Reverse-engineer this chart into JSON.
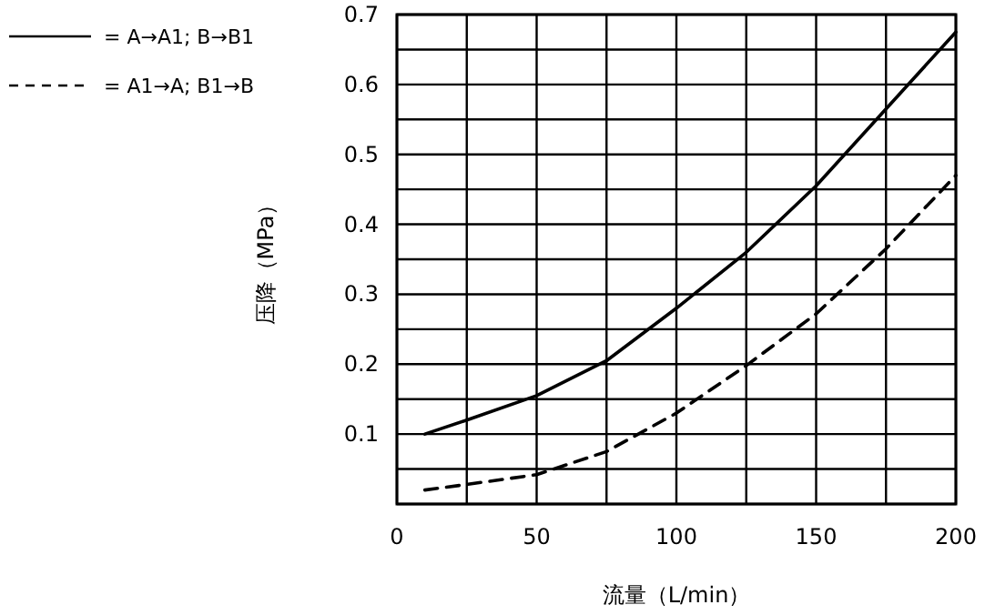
{
  "chart_data": {
    "type": "line",
    "xlabel": "流量（L/min）",
    "ylabel": "压降（MPa）",
    "xlim": [
      0,
      200
    ],
    "ylim": [
      0,
      0.7
    ],
    "xticks": [
      0,
      {
        "value": 25,
        "label": null
      },
      50,
      {
        "value": 75,
        "label": null
      },
      100,
      {
        "value": 125,
        "label": null
      },
      150,
      {
        "value": 175,
        "label": null
      },
      200
    ],
    "yticks": [
      {
        "value": 0,
        "label": null
      },
      {
        "value": 0.05,
        "label": null
      },
      0.1,
      {
        "value": 0.15,
        "label": null
      },
      0.2,
      {
        "value": 0.25,
        "label": null
      },
      0.3,
      {
        "value": 0.35,
        "label": null
      },
      0.4,
      {
        "value": 0.45,
        "label": null
      },
      0.5,
      {
        "value": 0.55,
        "label": null
      },
      0.6,
      {
        "value": 0.65,
        "label": null
      },
      0.7
    ],
    "grid": true,
    "legend": "left",
    "series": [
      {
        "name": "= A→A1; B→B1",
        "color": "#000000",
        "line_style": "solid",
        "x": [
          10,
          25,
          50,
          75,
          100,
          125,
          150,
          175,
          200
        ],
        "values": [
          0.1,
          0.12,
          0.155,
          0.205,
          0.28,
          0.36,
          0.455,
          0.565,
          0.675
        ]
      },
      {
        "name": "= A1→A; B1→B",
        "color": "#000000",
        "line_style": "dashed",
        "x": [
          10,
          25,
          50,
          75,
          100,
          125,
          150,
          175,
          200
        ],
        "values": [
          0.02,
          0.028,
          0.042,
          0.075,
          0.13,
          0.198,
          0.272,
          0.365,
          0.47
        ]
      }
    ]
  }
}
